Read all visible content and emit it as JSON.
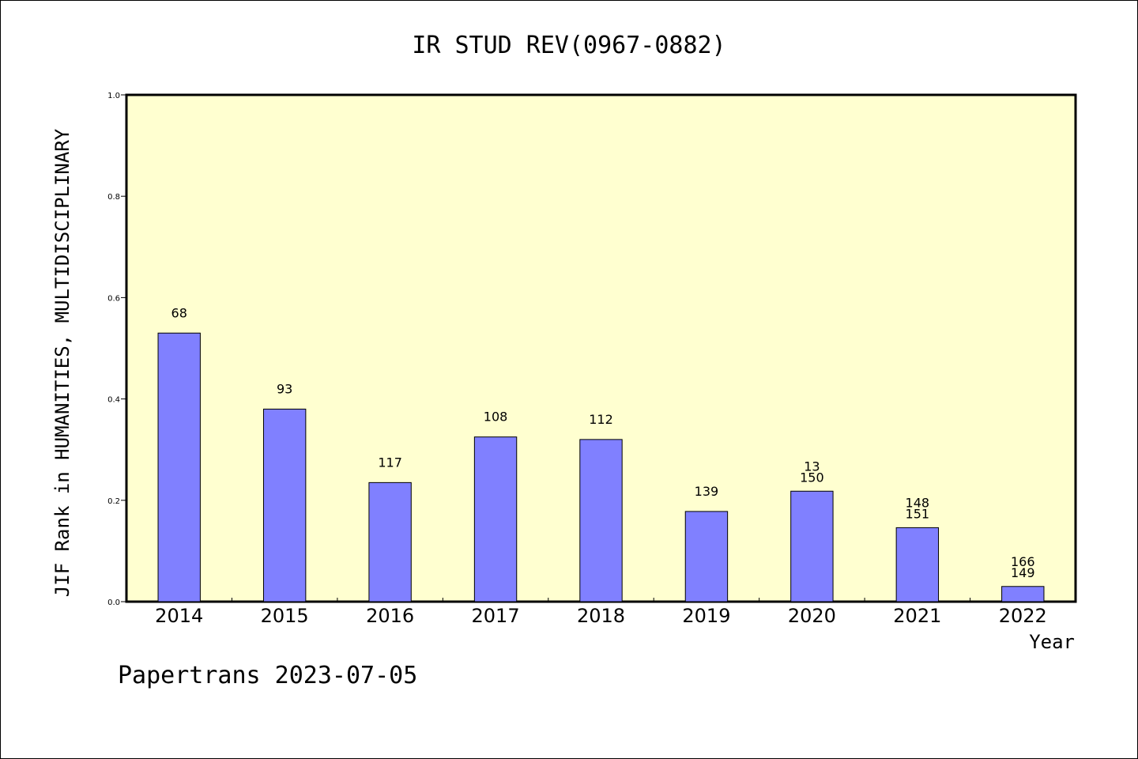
{
  "chart_data": {
    "type": "bar",
    "title": "IR STUD REV(0967-0882)",
    "xlabel": "Year",
    "ylabel": "JIF Rank in HUMANITIES, MULTIDISCIPLINARY",
    "ylim": [
      0,
      1.0
    ],
    "yticks": [
      "0.0",
      "0.2",
      "0.4",
      "0.6",
      "0.8",
      "1.0"
    ],
    "categories": [
      "2014",
      "2015",
      "2016",
      "2017",
      "2018",
      "2019",
      "2020",
      "2021",
      "2022"
    ],
    "values": [
      0.53,
      0.38,
      0.235,
      0.325,
      0.32,
      0.178,
      0.218,
      0.146,
      0.03
    ],
    "labels": [
      [
        "68"
      ],
      [
        "93"
      ],
      [
        "117"
      ],
      [
        "108"
      ],
      [
        "112"
      ],
      [
        "139"
      ],
      [
        "13",
        "150"
      ],
      [
        "148",
        "151"
      ],
      [
        "166",
        "149"
      ]
    ],
    "colors": {
      "plot_background": "#ffffd0",
      "bar_fill": "#8080ff",
      "bar_stroke": "#000000"
    },
    "grid": false
  },
  "footer": {
    "text": "Papertrans 2023-07-05"
  }
}
